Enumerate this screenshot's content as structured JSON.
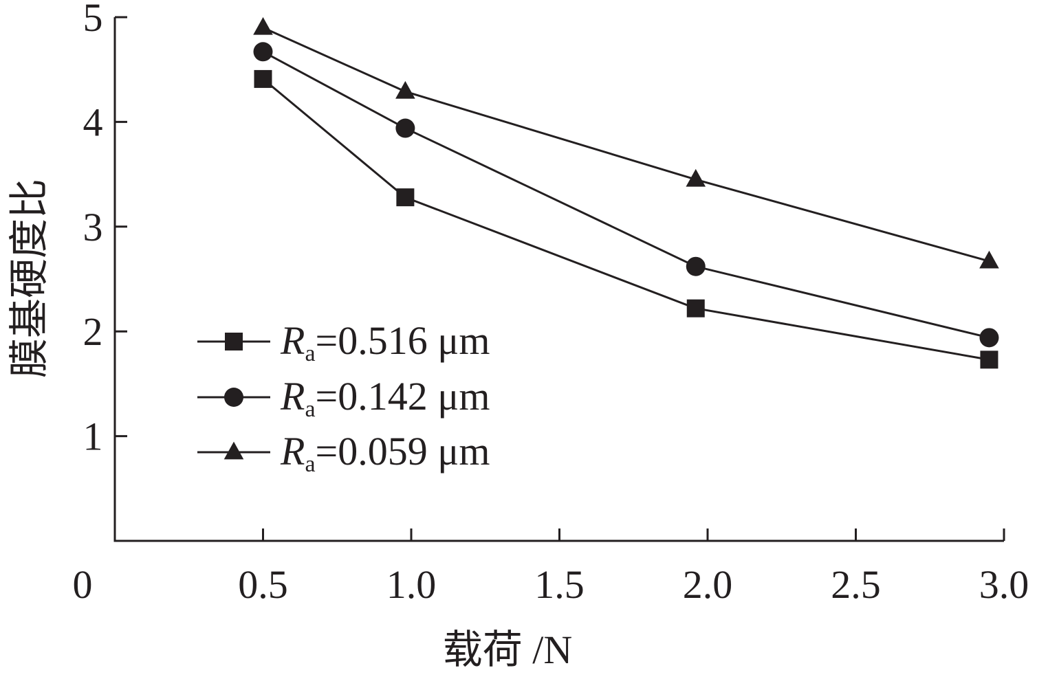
{
  "chart_data": {
    "type": "line",
    "xlabel": "载荷 /N",
    "ylabel": "膜基硬度比",
    "xlim": [
      0,
      3.0
    ],
    "ylim": [
      0,
      5
    ],
    "x_ticks": [
      0.5,
      1.0,
      1.5,
      2.0,
      2.5,
      3.0
    ],
    "x_tick_labels": [
      "0.5",
      "1.0",
      "1.5",
      "2.0",
      "2.5",
      "3.0"
    ],
    "y_ticks": [
      1,
      2,
      3,
      4,
      5
    ],
    "y_tick_labels": [
      "1",
      "2",
      "3",
      "4",
      "5"
    ],
    "origin_label": "0",
    "grid": false,
    "legend_position": "lower-left",
    "x": [
      0.5,
      0.98,
      1.96,
      2.95
    ],
    "series": [
      {
        "name": "Ra=0.516 μm",
        "name_main": "R",
        "name_sub": "a",
        "name_rest": "=0.516 μm",
        "marker": "square",
        "values": [
          4.41,
          3.28,
          2.22,
          1.73
        ]
      },
      {
        "name": "Ra=0.142 μm",
        "name_main": "R",
        "name_sub": "a",
        "name_rest": "=0.142 μm",
        "marker": "circle",
        "values": [
          4.67,
          3.94,
          2.62,
          1.94
        ]
      },
      {
        "name": "Ra=0.059 μm",
        "name_main": "R",
        "name_sub": "a",
        "name_rest": "=0.059 μm",
        "marker": "triangle",
        "values": [
          4.9,
          4.29,
          3.45,
          2.67
        ]
      }
    ],
    "colors": {
      "ink": "#231f20",
      "background": "#ffffff"
    }
  }
}
